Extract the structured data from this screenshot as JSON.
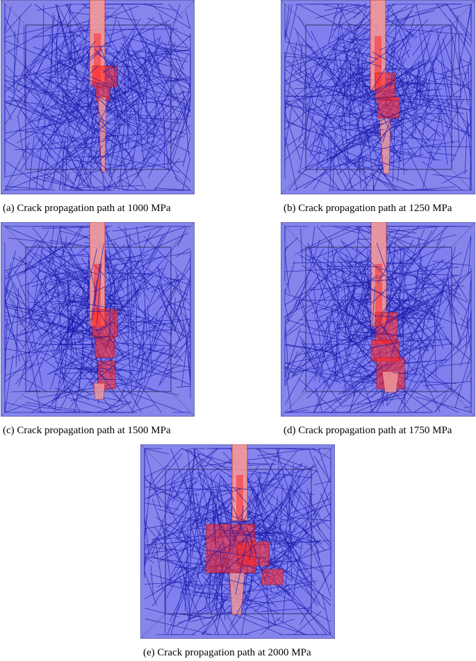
{
  "figure": {
    "panels": [
      {
        "id": "a",
        "caption": "(a) Crack propagation path at 1000 MPa",
        "stress_mpa": 1000
      },
      {
        "id": "b",
        "caption": "(b) Crack propagation path at 1250 MPa",
        "stress_mpa": 1250
      },
      {
        "id": "c",
        "caption": "(c) Crack propagation path at 1500 MPa",
        "stress_mpa": 1500
      },
      {
        "id": "d",
        "caption": "(d) Crack propagation path at 1750 MPa",
        "stress_mpa": 1750
      },
      {
        "id": "e",
        "caption": "(e) Crack propagation path at 2000 MPa",
        "stress_mpa": 2000
      }
    ],
    "colors": {
      "box_face": "#8585ec",
      "box_inner": "#7f7ff0",
      "box_edge": "#4a4a8a",
      "fiber": "#1a1aaa",
      "crack": "#ff2a2a",
      "crack_pale": "#f49a9a",
      "crack_edge": "#b01010"
    }
  }
}
